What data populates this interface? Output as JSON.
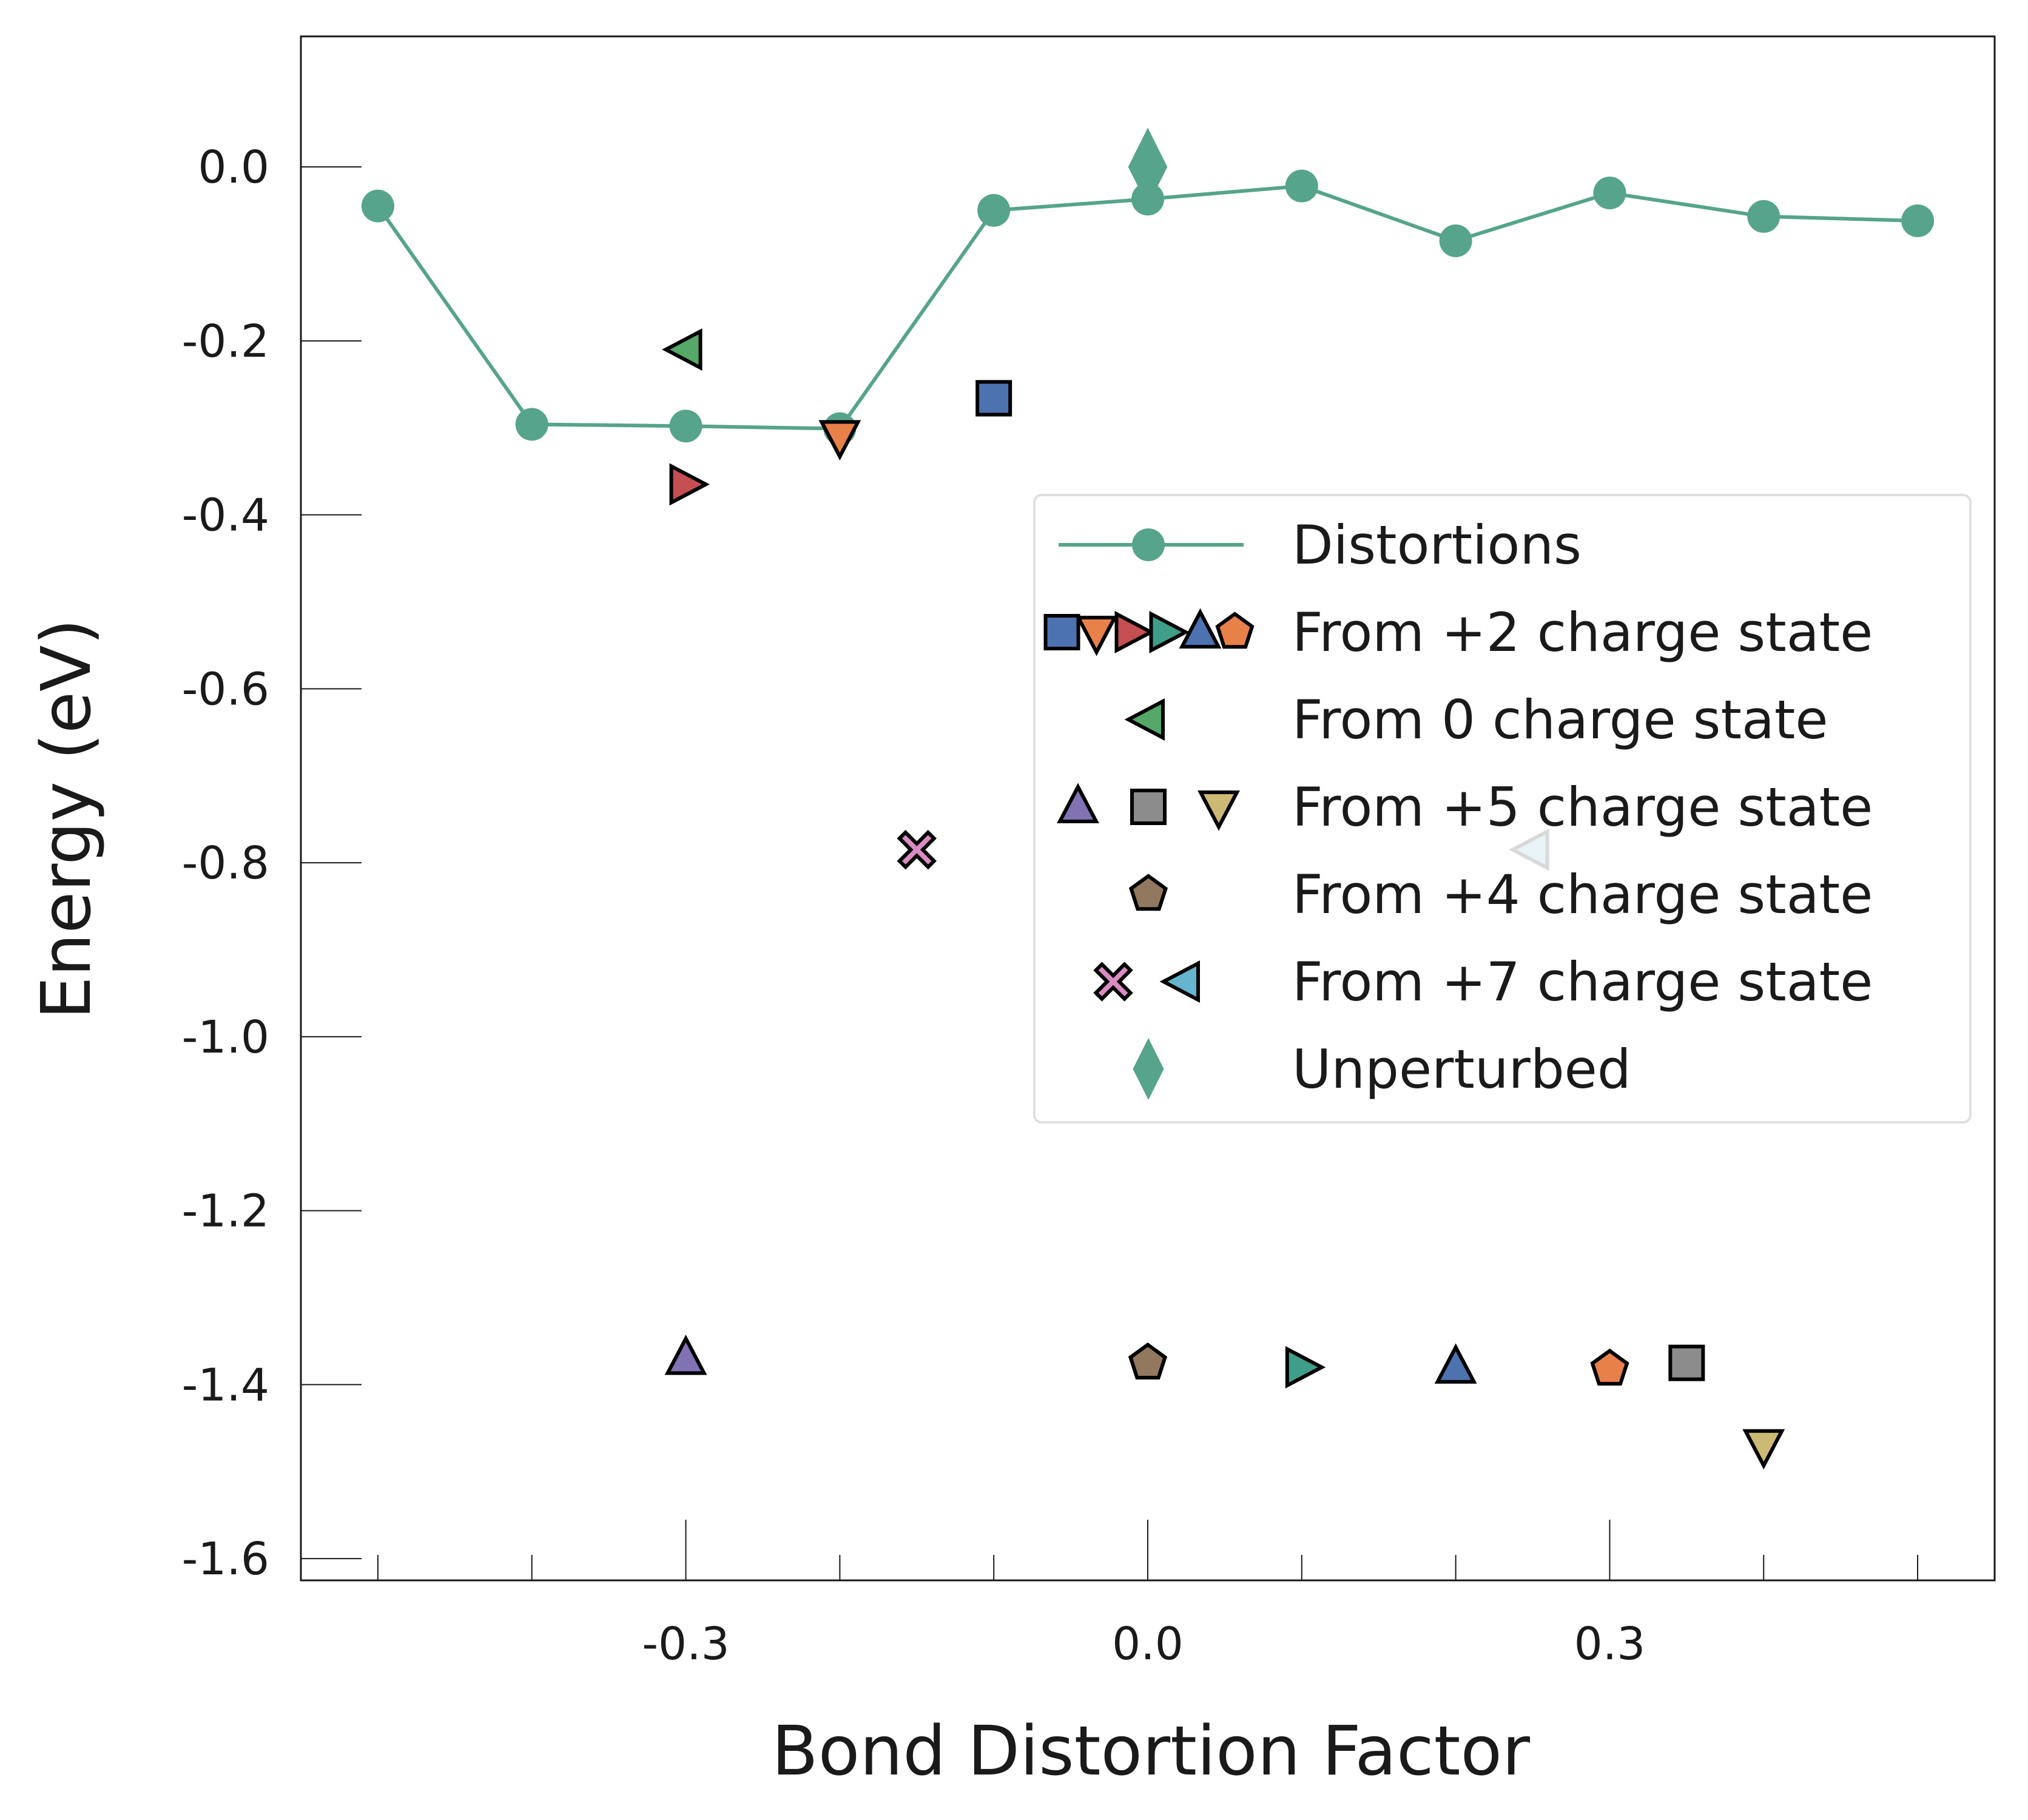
{
  "chart_data": {
    "type": "scatter",
    "xlabel": "Bond Distortion Factor",
    "ylabel": "Energy (eV)",
    "xlim": [
      -0.55,
      0.55
    ],
    "ylim": [
      -1.625,
      0.15
    ],
    "x_ticks": [
      -0.5,
      -0.4,
      -0.3,
      -0.2,
      -0.1,
      0.0,
      0.1,
      0.2,
      0.3,
      0.4,
      0.5
    ],
    "x_tick_labels": [
      {
        "value": -0.3,
        "label": "-0.3"
      },
      {
        "value": 0.0,
        "label": "0.0"
      },
      {
        "value": 0.3,
        "label": "0.3"
      }
    ],
    "y_ticks": [
      {
        "value": 0.0,
        "label": "0.0"
      },
      {
        "value": -0.2,
        "label": "-0.2"
      },
      {
        "value": -0.4,
        "label": "-0.4"
      },
      {
        "value": -0.6,
        "label": "-0.6"
      },
      {
        "value": -0.8,
        "label": "-0.8"
      },
      {
        "value": -1.0,
        "label": "-1.0"
      },
      {
        "value": -1.2,
        "label": "-1.2"
      },
      {
        "value": -1.4,
        "label": "-1.4"
      },
      {
        "value": -1.6,
        "label": "-1.6"
      }
    ],
    "grid": false,
    "legend_position": "right",
    "line_series": {
      "name": "Distortions",
      "color": "#55a48b",
      "x": [
        -0.5,
        -0.4,
        -0.3,
        -0.2,
        -0.1,
        0.0,
        0.1,
        0.2,
        0.3,
        0.4,
        0.5
      ],
      "y": [
        -0.045,
        -0.296,
        -0.298,
        -0.301,
        -0.05,
        -0.037,
        -0.022,
        -0.085,
        -0.03,
        -0.057,
        -0.062
      ]
    },
    "points": [
      {
        "x": -0.3,
        "y": -0.21,
        "marker": "triangle-left",
        "color": "#55a868",
        "source": "0"
      },
      {
        "x": -0.1,
        "y": -0.266,
        "marker": "square",
        "color": "#4c72b0",
        "source": "+2"
      },
      {
        "x": -0.2,
        "y": -0.31,
        "marker": "triangle-down",
        "color": "#e8804a",
        "source": "+2"
      },
      {
        "x": -0.3,
        "y": -0.365,
        "marker": "triangle-right",
        "color": "#c44e52",
        "source": "+2"
      },
      {
        "x": -0.15,
        "y": -0.785,
        "marker": "x",
        "color": "#da8bc3",
        "source": "+7"
      },
      {
        "x": 0.25,
        "y": -0.785,
        "marker": "triangle-left",
        "color": "#64b5cd",
        "source": "+7"
      },
      {
        "x": -0.3,
        "y": -1.37,
        "marker": "triangle-up",
        "color": "#8172b3",
        "source": "+5"
      },
      {
        "x": 0.0,
        "y": -1.375,
        "marker": "pentagon",
        "color": "#937860",
        "source": "+4"
      },
      {
        "x": 0.1,
        "y": -1.38,
        "marker": "triangle-right",
        "color": "#3f9e8a",
        "source": "+2"
      },
      {
        "x": 0.2,
        "y": -1.38,
        "marker": "triangle-up",
        "color": "#4c72b0",
        "source": "+2"
      },
      {
        "x": 0.3,
        "y": -1.382,
        "marker": "pentagon",
        "color": "#e8804a",
        "source": "+2"
      },
      {
        "x": 0.35,
        "y": -1.375,
        "marker": "square",
        "color": "#8c8c8c",
        "source": "+5"
      },
      {
        "x": 0.4,
        "y": -1.47,
        "marker": "triangle-down",
        "color": "#ccb974",
        "source": "+5"
      }
    ],
    "unperturbed": {
      "x": 0.0,
      "y": 0.0,
      "marker": "diamond",
      "color": "#55a48b"
    },
    "legend": [
      {
        "label": "Distortions",
        "markers": [
          {
            "marker": "line-circle",
            "color": "#55a48b"
          }
        ]
      },
      {
        "label": "From +2 charge state",
        "markers": [
          {
            "marker": "square",
            "color": "#4c72b0"
          },
          {
            "marker": "triangle-down",
            "color": "#e8804a"
          },
          {
            "marker": "triangle-right",
            "color": "#c44e52"
          },
          {
            "marker": "triangle-right",
            "color": "#3f9e8a"
          },
          {
            "marker": "triangle-up",
            "color": "#4c72b0"
          },
          {
            "marker": "pentagon",
            "color": "#e8804a"
          }
        ]
      },
      {
        "label": "From 0 charge state",
        "markers": [
          {
            "marker": "triangle-left",
            "color": "#55a868"
          }
        ]
      },
      {
        "label": "From +5 charge state",
        "markers": [
          {
            "marker": "triangle-up",
            "color": "#8172b3"
          },
          {
            "marker": "square",
            "color": "#8c8c8c"
          },
          {
            "marker": "triangle-down",
            "color": "#ccb974"
          }
        ]
      },
      {
        "label": "From +4 charge state",
        "markers": [
          {
            "marker": "pentagon",
            "color": "#937860"
          }
        ]
      },
      {
        "label": "From +7 charge state",
        "markers": [
          {
            "marker": "x",
            "color": "#da8bc3"
          },
          {
            "marker": "triangle-left",
            "color": "#64b5cd"
          }
        ]
      },
      {
        "label": "Unperturbed",
        "markers": [
          {
            "marker": "diamond",
            "color": "#55a48b"
          }
        ]
      }
    ]
  }
}
